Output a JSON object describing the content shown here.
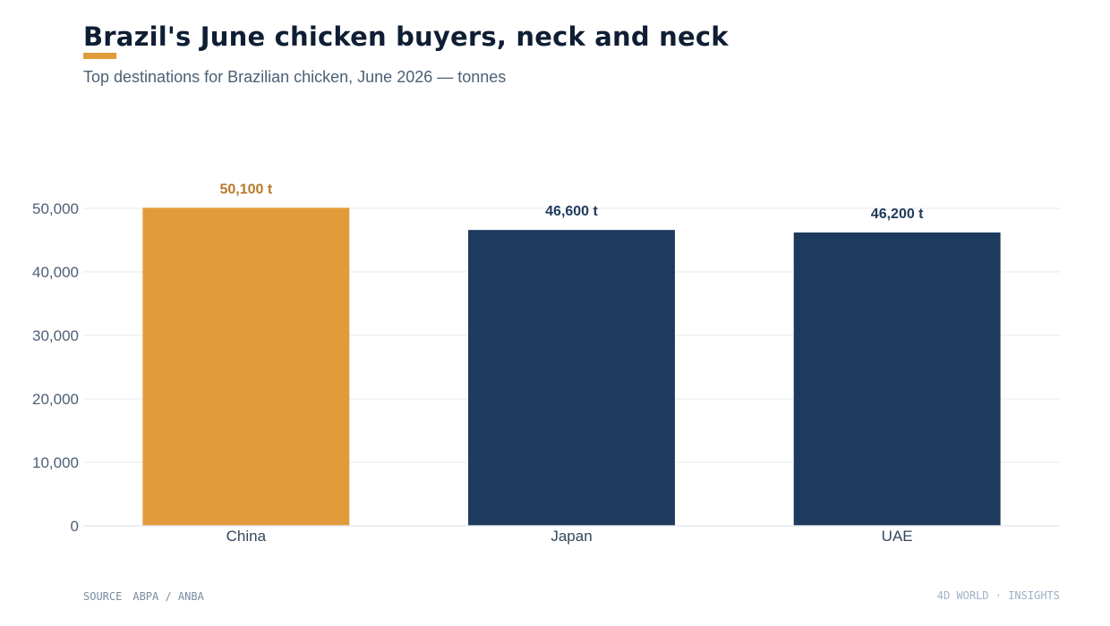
{
  "header": {
    "title": "Brazil's June chicken buyers, neck and neck",
    "subtitle": "Top destinations for Brazilian chicken, June 2026 — tonnes"
  },
  "chart_data": {
    "type": "bar",
    "categories": [
      "China",
      "Japan",
      "UAE"
    ],
    "values": [
      50100,
      46600,
      46200
    ],
    "value_labels": [
      "50,100 t",
      "46,600 t",
      "46,200 t"
    ],
    "highlight_index": 0,
    "ylim": [
      0,
      50000
    ],
    "yticks": [
      0,
      10000,
      20000,
      30000,
      40000,
      50000
    ],
    "ytick_labels": [
      "0",
      "10,000",
      "20,000",
      "30,000",
      "40,000",
      "50,000"
    ],
    "xlabel": "",
    "ylabel": "",
    "grid": true,
    "colors": {
      "highlight": "#e29b3b",
      "highlight_label": "#b8782a",
      "default": "#1e3a5c",
      "default_label": "#1e3a5c",
      "gridline": "#e3e8ef",
      "tick_text": "#4d6075",
      "category_text": "#33475c"
    }
  },
  "footer": {
    "source_label": "SOURCE",
    "source": "ABPA / ANBA",
    "brand": "4D WORLD · INSIGHTS"
  }
}
